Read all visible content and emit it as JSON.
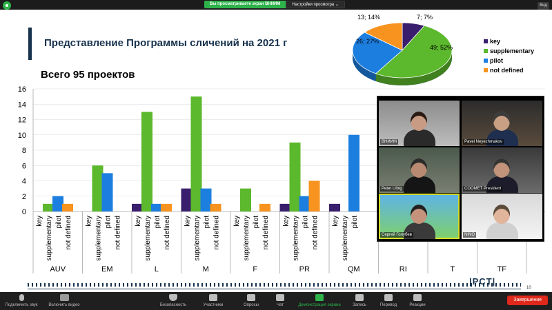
{
  "window": {
    "share_banner": "Вы просматриваете экран ВНИИМ",
    "view_options": "Настройки просмотра ⌄",
    "view_button": "Вид"
  },
  "slide": {
    "title": "Представление Программы сличений на 2021 г",
    "subtitle": "Всего 95 проектов",
    "logo": "|PCT|",
    "page": "10"
  },
  "colors": {
    "key": "#3a1e6e",
    "supplementary": "#5cb82c",
    "pilot": "#1c7fe0",
    "not_defined": "#f7931e",
    "title": "#17324d"
  },
  "chart_data": [
    {
      "type": "bar",
      "ylim": [
        0,
        16
      ],
      "yticks": [
        0,
        2,
        4,
        6,
        8,
        10,
        12,
        14,
        16
      ],
      "series_labels": [
        "key",
        "supplementary",
        "pilot",
        "not defined"
      ],
      "categories": [
        "AUV",
        "EM",
        "L",
        "M",
        "F",
        "PR",
        "QM",
        "RI",
        "T",
        "TF"
      ],
      "series": [
        {
          "name": "key",
          "color": "#3a1e6e",
          "values": [
            0,
            0,
            1,
            3,
            0,
            1,
            1,
            null,
            null,
            null
          ]
        },
        {
          "name": "supplementary",
          "color": "#5cb82c",
          "values": [
            1,
            6,
            13,
            15,
            3,
            9,
            0,
            null,
            null,
            null
          ]
        },
        {
          "name": "pilot",
          "color": "#1c7fe0",
          "values": [
            2,
            5,
            1,
            3,
            0,
            2,
            10,
            null,
            null,
            null
          ]
        },
        {
          "name": "not defined",
          "color": "#f7931e",
          "values": [
            1,
            0,
            1,
            1,
            1,
            4,
            null,
            null,
            null,
            null
          ]
        }
      ],
      "visible_series_labels": [
        [
          "key",
          "supplementary",
          "pilot",
          "not defined"
        ],
        [
          "key",
          "supplementary",
          "pilot",
          "not defined"
        ],
        [
          "key",
          "supplementary",
          "pilot",
          "not defined"
        ],
        [
          "key",
          "supplementary",
          "pilot",
          "not defined"
        ],
        [
          "key",
          "supplementary",
          "pilot",
          "not defined"
        ],
        [
          "key",
          "supplementary",
          "pilot",
          "not defined"
        ],
        [
          "key",
          "supplementary",
          "pilot"
        ],
        [
          "suppl"
        ],
        [
          "suppl"
        ],
        [
          "suppl",
          "no"
        ]
      ]
    },
    {
      "type": "pie",
      "style": "3d",
      "slices": [
        {
          "name": "key",
          "value": 7,
          "percent": 7,
          "label": "7; 7%",
          "color": "#3a1e6e"
        },
        {
          "name": "supplementary",
          "value": 49,
          "percent": 52,
          "label": "49; 52%",
          "color": "#5cb82c"
        },
        {
          "name": "pilot",
          "value": 26,
          "percent": 27,
          "label": "26; 27%",
          "color": "#1c7fe0"
        },
        {
          "name": "not defined",
          "value": 13,
          "percent": 14,
          "label": "13; 14%",
          "color": "#f7931e"
        }
      ],
      "legend": [
        "key",
        "supplementary",
        "pilot",
        "not defined"
      ],
      "legend_position": "right"
    }
  ],
  "participants": [
    {
      "name": "ВНИИМ",
      "speaking": false
    },
    {
      "name": "Pavel Neyezhmakov",
      "speaking": false
    },
    {
      "name": "Peter Ulbig",
      "speaking": false
    },
    {
      "name": "COOMET President",
      "speaking": false
    },
    {
      "name": "Сергей Голубев",
      "speaking": true
    },
    {
      "name": "NINO",
      "speaking": false
    }
  ],
  "toolbar": {
    "mute": "Подключить звук",
    "video": "Включить видео",
    "security": "Безопасность",
    "participants": "Участники",
    "participants_count": "11",
    "polls": "Опросы",
    "chat": "Чат",
    "share": "Демонстрация экрана",
    "record": "Запись",
    "interpretation": "Перевод",
    "reactions": "Реакции",
    "end": "Завершение"
  }
}
